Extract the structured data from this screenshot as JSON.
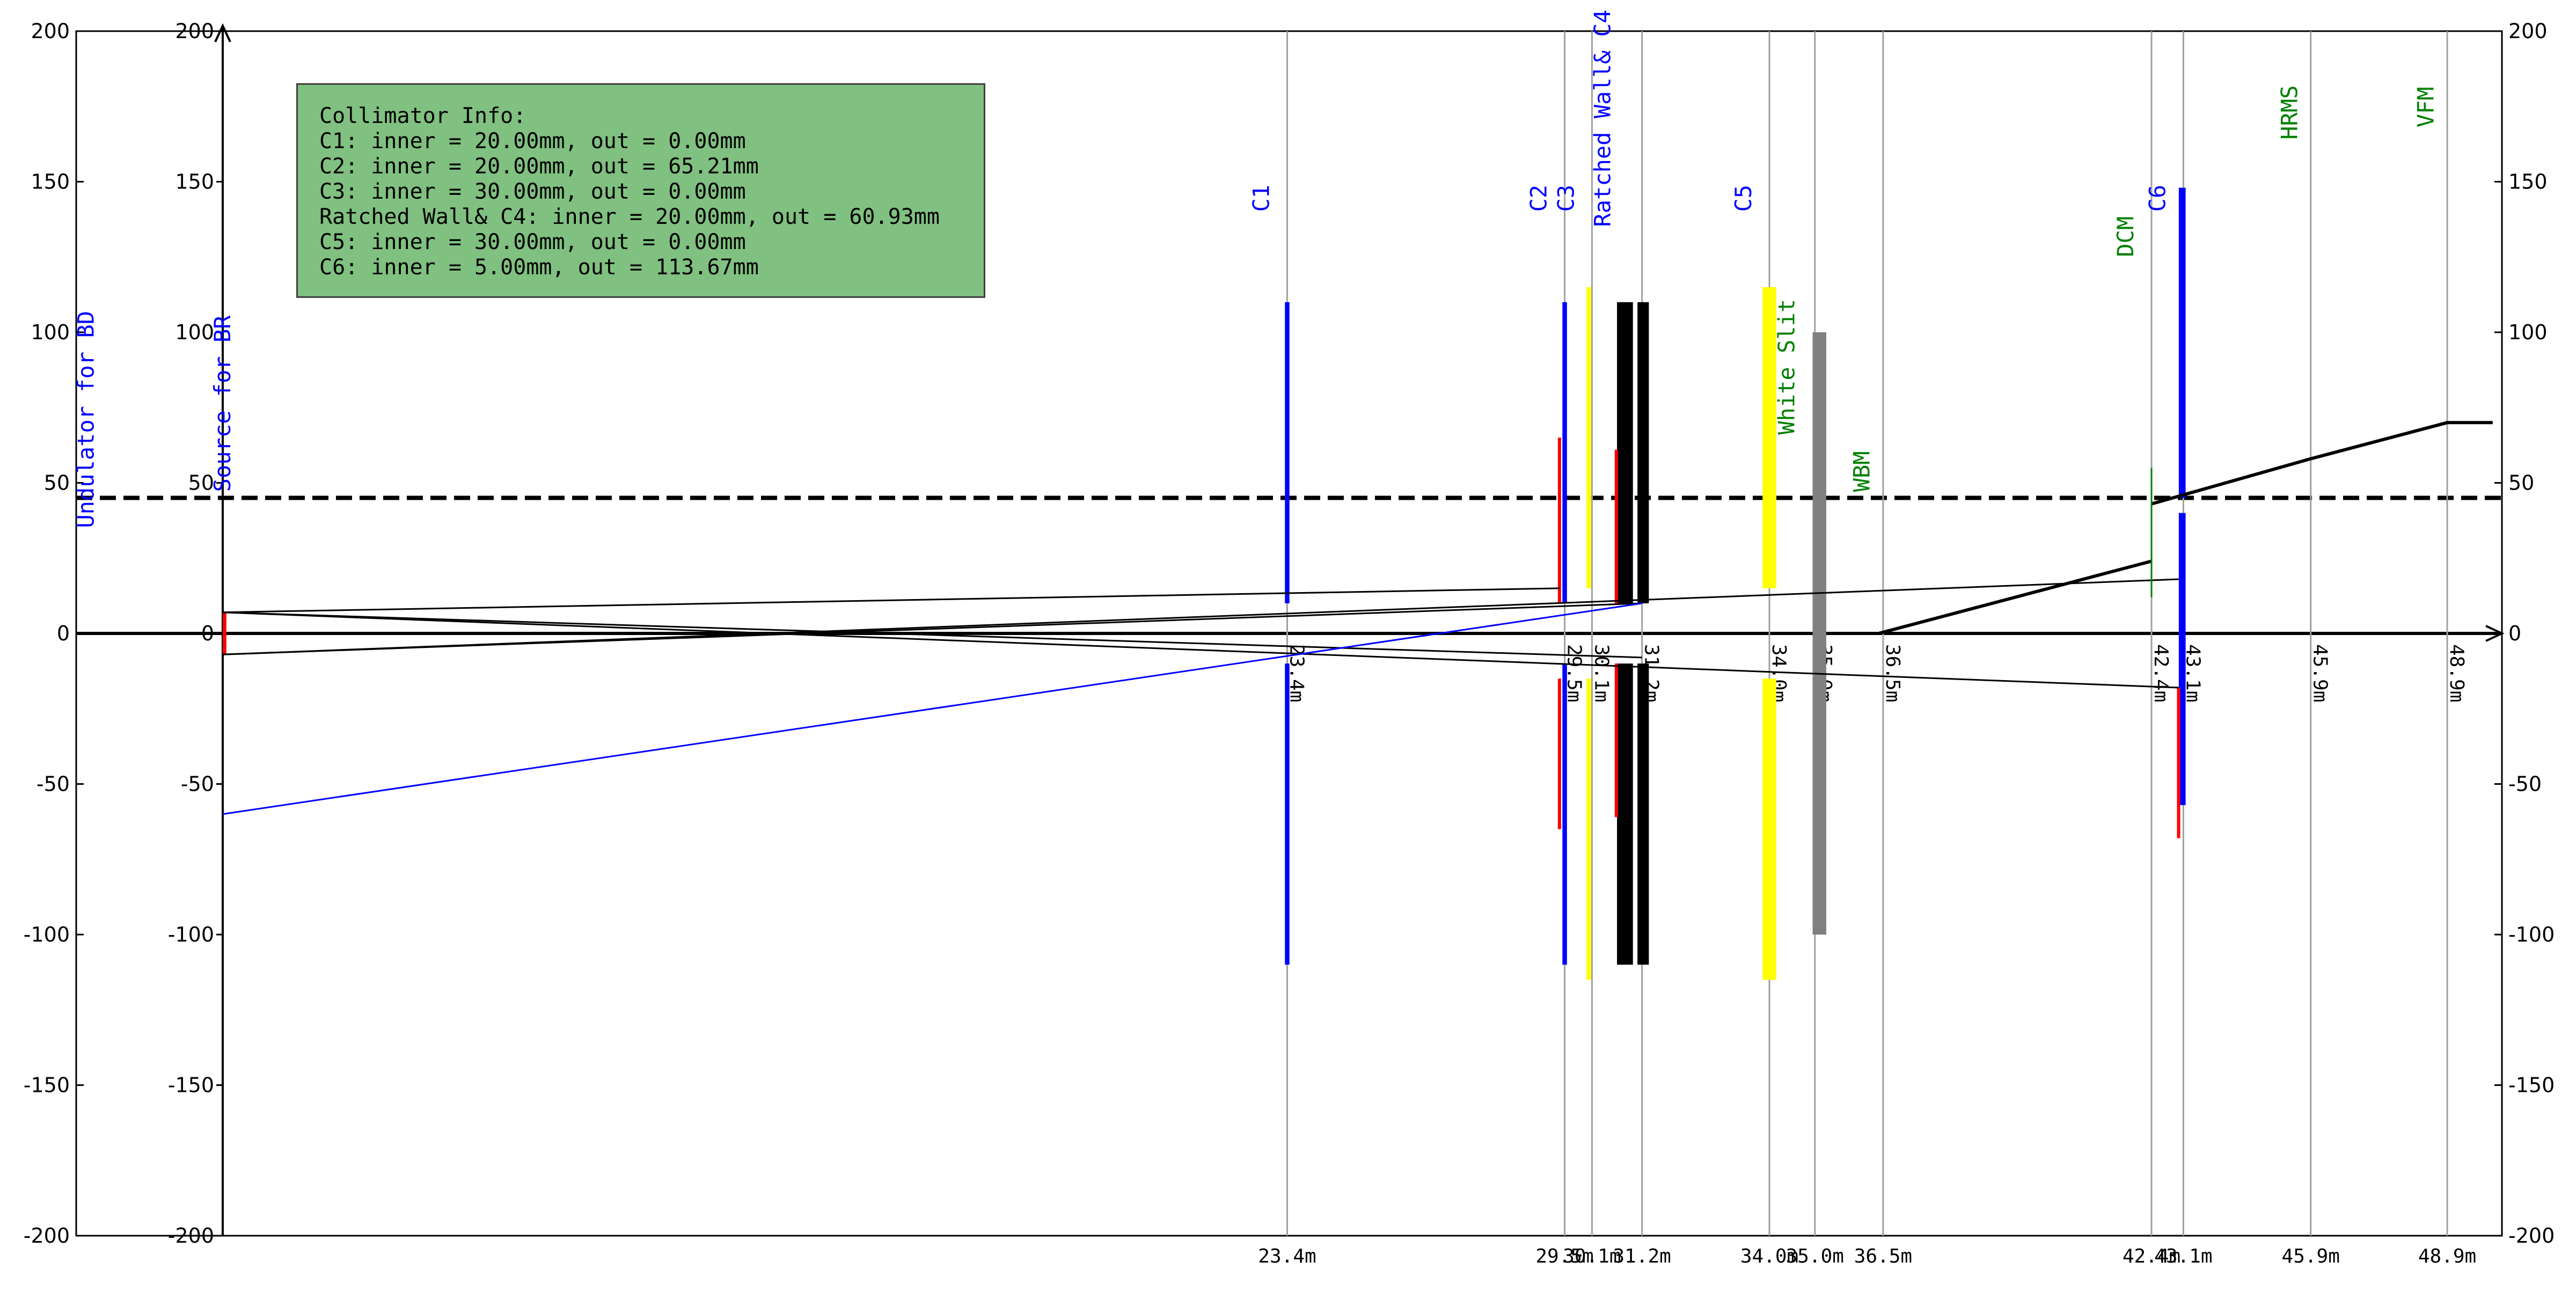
{
  "axis": {
    "y_ticks": [
      200,
      150,
      100,
      50,
      0,
      -50,
      -100,
      -150,
      -200
    ],
    "ylim": [
      -200,
      200
    ],
    "xlim_m": [
      0,
      49.9
    ]
  },
  "info_box": {
    "title": "Collimator Info:",
    "lines": [
      "C1: inner = 20.00mm, out = 0.00mm",
      "C2: inner = 20.00mm, out = 65.21mm",
      "C3: inner = 30.00mm, out = 0.00mm",
      "Ratched Wall& C4: inner = 20.00mm, out = 60.93mm",
      "C5: inner = 30.00mm, out = 0.00mm",
      "C6: inner = 5.00mm, out = 113.67mm"
    ],
    "fill": "#80c080"
  },
  "source_labels": [
    {
      "text": "Undulator for BD",
      "x": -3,
      "y": 35
    },
    {
      "text": "Source for BR",
      "x": 0,
      "y": 47
    }
  ],
  "vlines": [
    {
      "x": 23.4,
      "label": "23.4m"
    },
    {
      "x": 29.5,
      "label": "29.5m"
    },
    {
      "x": 30.1,
      "label": "30.1m"
    },
    {
      "x": 31.2,
      "label": "31.2m"
    },
    {
      "x": 34.0,
      "label": "34.0m"
    },
    {
      "x": 35.0,
      "label": "35.0m"
    },
    {
      "x": 36.5,
      "label": "36.5m"
    },
    {
      "x": 42.4,
      "label": "42.4m"
    },
    {
      "x": 43.1,
      "label": "43.1m"
    },
    {
      "x": 45.9,
      "label": "45.9m"
    },
    {
      "x": 48.9,
      "label": "48.9m"
    }
  ],
  "blocks": [
    {
      "name": "C1",
      "x0": 23.35,
      "x1": 23.45,
      "y0": 10,
      "y1": 110,
      "color": "#0000ff"
    },
    {
      "name": "C1",
      "x0": 23.35,
      "x1": 23.45,
      "y0": -110,
      "y1": -10,
      "color": "#0000ff"
    },
    {
      "name": "C2",
      "x0": 29.45,
      "x1": 29.55,
      "y0": 10,
      "y1": 110,
      "color": "#0000ff"
    },
    {
      "name": "C2",
      "x0": 29.45,
      "x1": 29.55,
      "y0": -110,
      "y1": -10,
      "color": "#0000ff"
    },
    {
      "name": "C3",
      "x0": 29.98,
      "x1": 30.08,
      "y0": 15,
      "y1": 115,
      "color": "#ffff00"
    },
    {
      "name": "C3",
      "x0": 29.98,
      "x1": 30.08,
      "y0": -115,
      "y1": -15,
      "color": "#ffff00"
    },
    {
      "name": "Ratched Wall& C4",
      "x0": 30.65,
      "x1": 31.0,
      "y0": 10,
      "y1": 110,
      "color": "#000000"
    },
    {
      "name": "Ratched Wall& C4",
      "x0": 31.1,
      "x1": 31.35,
      "y0": 10,
      "y1": 110,
      "color": "#000000"
    },
    {
      "name": "Ratched Wall& C4",
      "x0": 30.65,
      "x1": 31.0,
      "y0": -110,
      "y1": -10,
      "color": "#000000"
    },
    {
      "name": "Ratched Wall& C4",
      "x0": 31.1,
      "x1": 31.35,
      "y0": -110,
      "y1": -10,
      "color": "#000000"
    },
    {
      "name": "C5",
      "x0": 33.85,
      "x1": 34.15,
      "y0": 15,
      "y1": 115,
      "color": "#ffff00"
    },
    {
      "name": "C5",
      "x0": 33.85,
      "x1": 34.15,
      "y0": -115,
      "y1": -15,
      "color": "#ffff00"
    },
    {
      "name": "White Slit",
      "x0": 34.95,
      "x1": 35.25,
      "y0": -100,
      "y1": 100,
      "color": "#808080"
    },
    {
      "name": "C6",
      "x0": 43.0,
      "x1": 43.15,
      "y0": 45,
      "y1": 148,
      "color": "#0000ff"
    },
    {
      "name": "C6",
      "x0": 43.0,
      "x1": 43.15,
      "y0": -57,
      "y1": 40,
      "color": "#0000ff"
    },
    {
      "name": "red-C2",
      "x0": 29.35,
      "x1": 29.4,
      "y0": 10,
      "y1": 65,
      "color": "#ff0000"
    },
    {
      "name": "red-C2",
      "x0": 29.35,
      "x1": 29.4,
      "y0": -65,
      "y1": -15,
      "color": "#ff0000"
    },
    {
      "name": "red-C4",
      "x0": 30.6,
      "x1": 30.65,
      "y0": 10,
      "y1": 61,
      "color": "#ff0000"
    },
    {
      "name": "red-C4",
      "x0": 30.6,
      "x1": 30.65,
      "y0": -61,
      "y1": -10,
      "color": "#ff0000"
    },
    {
      "name": "red-C6",
      "x0": 42.96,
      "x1": 43.0,
      "y0": -68,
      "y1": -18,
      "color": "#ff0000"
    },
    {
      "name": "red-source",
      "x0": 0.0,
      "x1": 0.08,
      "y0": -7,
      "y1": 7,
      "color": "#ff0000"
    }
  ],
  "top_labels": [
    {
      "text": "C1",
      "x": 23.0,
      "y": 140,
      "color": "#0000ff"
    },
    {
      "text": "C2",
      "x": 29.1,
      "y": 140,
      "color": "#0000ff"
    },
    {
      "text": "C3",
      "x": 29.7,
      "y": 140,
      "color": "#0000ff"
    },
    {
      "text": "Ratched Wall& C4",
      "x": 30.5,
      "y": 135,
      "color": "#0000ff"
    },
    {
      "text": "C5",
      "x": 33.6,
      "y": 140,
      "color": "#0000ff"
    },
    {
      "text": "White Slit",
      "x": 34.55,
      "y": 66,
      "color": "#008000"
    },
    {
      "text": "WBM",
      "x": 36.2,
      "y": 47,
      "color": "#008000"
    },
    {
      "text": "DCM",
      "x": 42.0,
      "y": 125,
      "color": "#008000"
    },
    {
      "text": "C6",
      "x": 42.7,
      "y": 140,
      "color": "#0000ff"
    },
    {
      "text": "HRMS",
      "x": 45.6,
      "y": 164,
      "color": "#008000"
    },
    {
      "text": "VFM",
      "x": 48.6,
      "y": 168,
      "color": "#008000"
    }
  ],
  "lines": [
    {
      "name": "ray-upper-1",
      "pts": [
        [
          0,
          7
        ],
        [
          29.4,
          15
        ]
      ],
      "color": "#000000"
    },
    {
      "name": "ray-upper-2",
      "pts": [
        [
          0,
          7
        ],
        [
          31.2,
          -8
        ]
      ],
      "color": "#000000"
    },
    {
      "name": "ray-lower-1",
      "pts": [
        [
          0,
          -7
        ],
        [
          31.2,
          10
        ]
      ],
      "color": "#000000"
    },
    {
      "name": "ray-lower-2",
      "pts": [
        [
          0,
          -7
        ],
        [
          43.0,
          18
        ]
      ],
      "color": "#000000"
    },
    {
      "name": "ray-cross-1",
      "pts": [
        [
          0,
          7
        ],
        [
          43.0,
          -18
        ]
      ],
      "color": "#000000"
    },
    {
      "name": "blue-ray",
      "pts": [
        [
          0,
          -60
        ],
        [
          31.2,
          10
        ]
      ],
      "color": "#0000ff"
    },
    {
      "name": "dcm-beam",
      "pts": [
        [
          36.4,
          0
        ],
        [
          42.4,
          24
        ]
      ],
      "color": "#000000",
      "width": 6
    },
    {
      "name": "exit-beam",
      "pts": [
        [
          42.4,
          43
        ],
        [
          45.9,
          58
        ],
        [
          48.9,
          70
        ],
        [
          49.9,
          70
        ]
      ],
      "color": "#000000",
      "width": 6
    },
    {
      "name": "dcm-crystal",
      "pts": [
        [
          42.4,
          12
        ],
        [
          42.4,
          55
        ]
      ],
      "color": "#008000"
    }
  ]
}
